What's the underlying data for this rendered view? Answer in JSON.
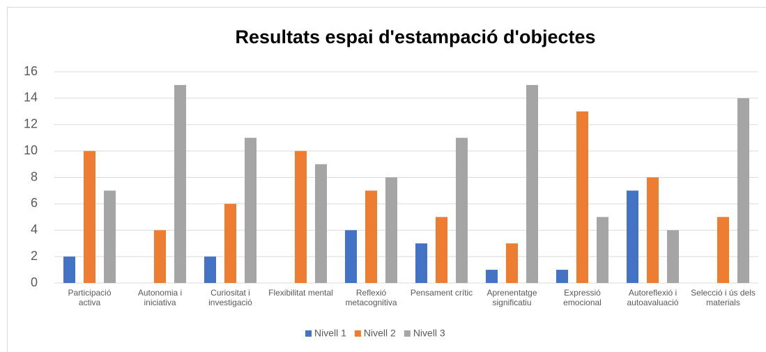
{
  "chart_data": {
    "type": "bar",
    "title": "Resultats espai d'estampació d'objectes",
    "categories": [
      "Participació activa",
      "Autonomia i iniciativa",
      "Curiositat i investigació",
      "Flexibilitat mental",
      "Reflexió metacognitiva",
      "Pensament crític",
      "Aprenentatge significatiu",
      "Expressió emocional",
      "Autoreflexió i autoavaluació",
      "Selecció i ús dels materials"
    ],
    "series": [
      {
        "name": "Nivell 1",
        "color": "#4472c4",
        "values": [
          2,
          0,
          2,
          0,
          4,
          3,
          1,
          1,
          7,
          0
        ]
      },
      {
        "name": "Nivell 2",
        "color": "#ed7d31",
        "values": [
          10,
          4,
          6,
          10,
          7,
          5,
          3,
          13,
          8,
          5
        ]
      },
      {
        "name": "Nivell 3",
        "color": "#a5a5a5",
        "values": [
          7,
          15,
          11,
          9,
          8,
          11,
          15,
          5,
          4,
          14
        ]
      }
    ],
    "ylim": [
      0,
      16
    ],
    "yticks": [
      0,
      2,
      4,
      6,
      8,
      10,
      12,
      14,
      16
    ],
    "grid": true,
    "legend": "bottom"
  }
}
